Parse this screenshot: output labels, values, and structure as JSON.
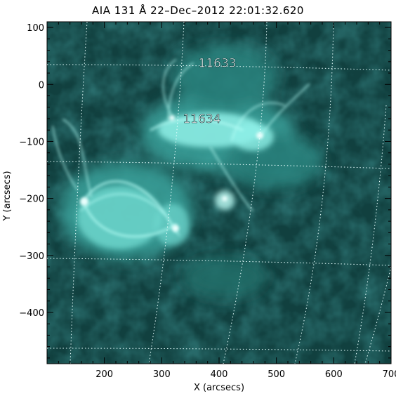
{
  "title": "AIA 131 Å 22–Dec–2012 22:01:32.620",
  "axes": {
    "x": {
      "label": "X (arcsecs)",
      "range": [
        100,
        700
      ],
      "ticks": [
        {
          "value": 200,
          "label": "200"
        },
        {
          "value": 300,
          "label": "300"
        },
        {
          "value": 400,
          "label": "400"
        },
        {
          "value": 500,
          "label": "500"
        },
        {
          "value": 600,
          "label": "600"
        },
        {
          "value": 700,
          "label": "700"
        }
      ]
    },
    "y": {
      "label": "Y (arcsecs)",
      "range": [
        -490,
        110
      ],
      "ticks": [
        {
          "value": 100,
          "label": "100"
        },
        {
          "value": 0,
          "label": "0"
        },
        {
          "value": -100,
          "label": "−100"
        },
        {
          "value": -200,
          "label": "−200"
        },
        {
          "value": -300,
          "label": "−300"
        },
        {
          "value": -400,
          "label": "−400"
        }
      ]
    }
  },
  "annotations": [
    {
      "text": "11633",
      "x": 397,
      "y": 38
    },
    {
      "text": "11634",
      "x": 370,
      "y": -60
    }
  ],
  "colors": {
    "background": "#ffffff",
    "image_dark": "#0a2c2c",
    "image_mid": "#1f7570",
    "image_bright": "#9ff7ef",
    "grid": "#e8ffff"
  }
}
